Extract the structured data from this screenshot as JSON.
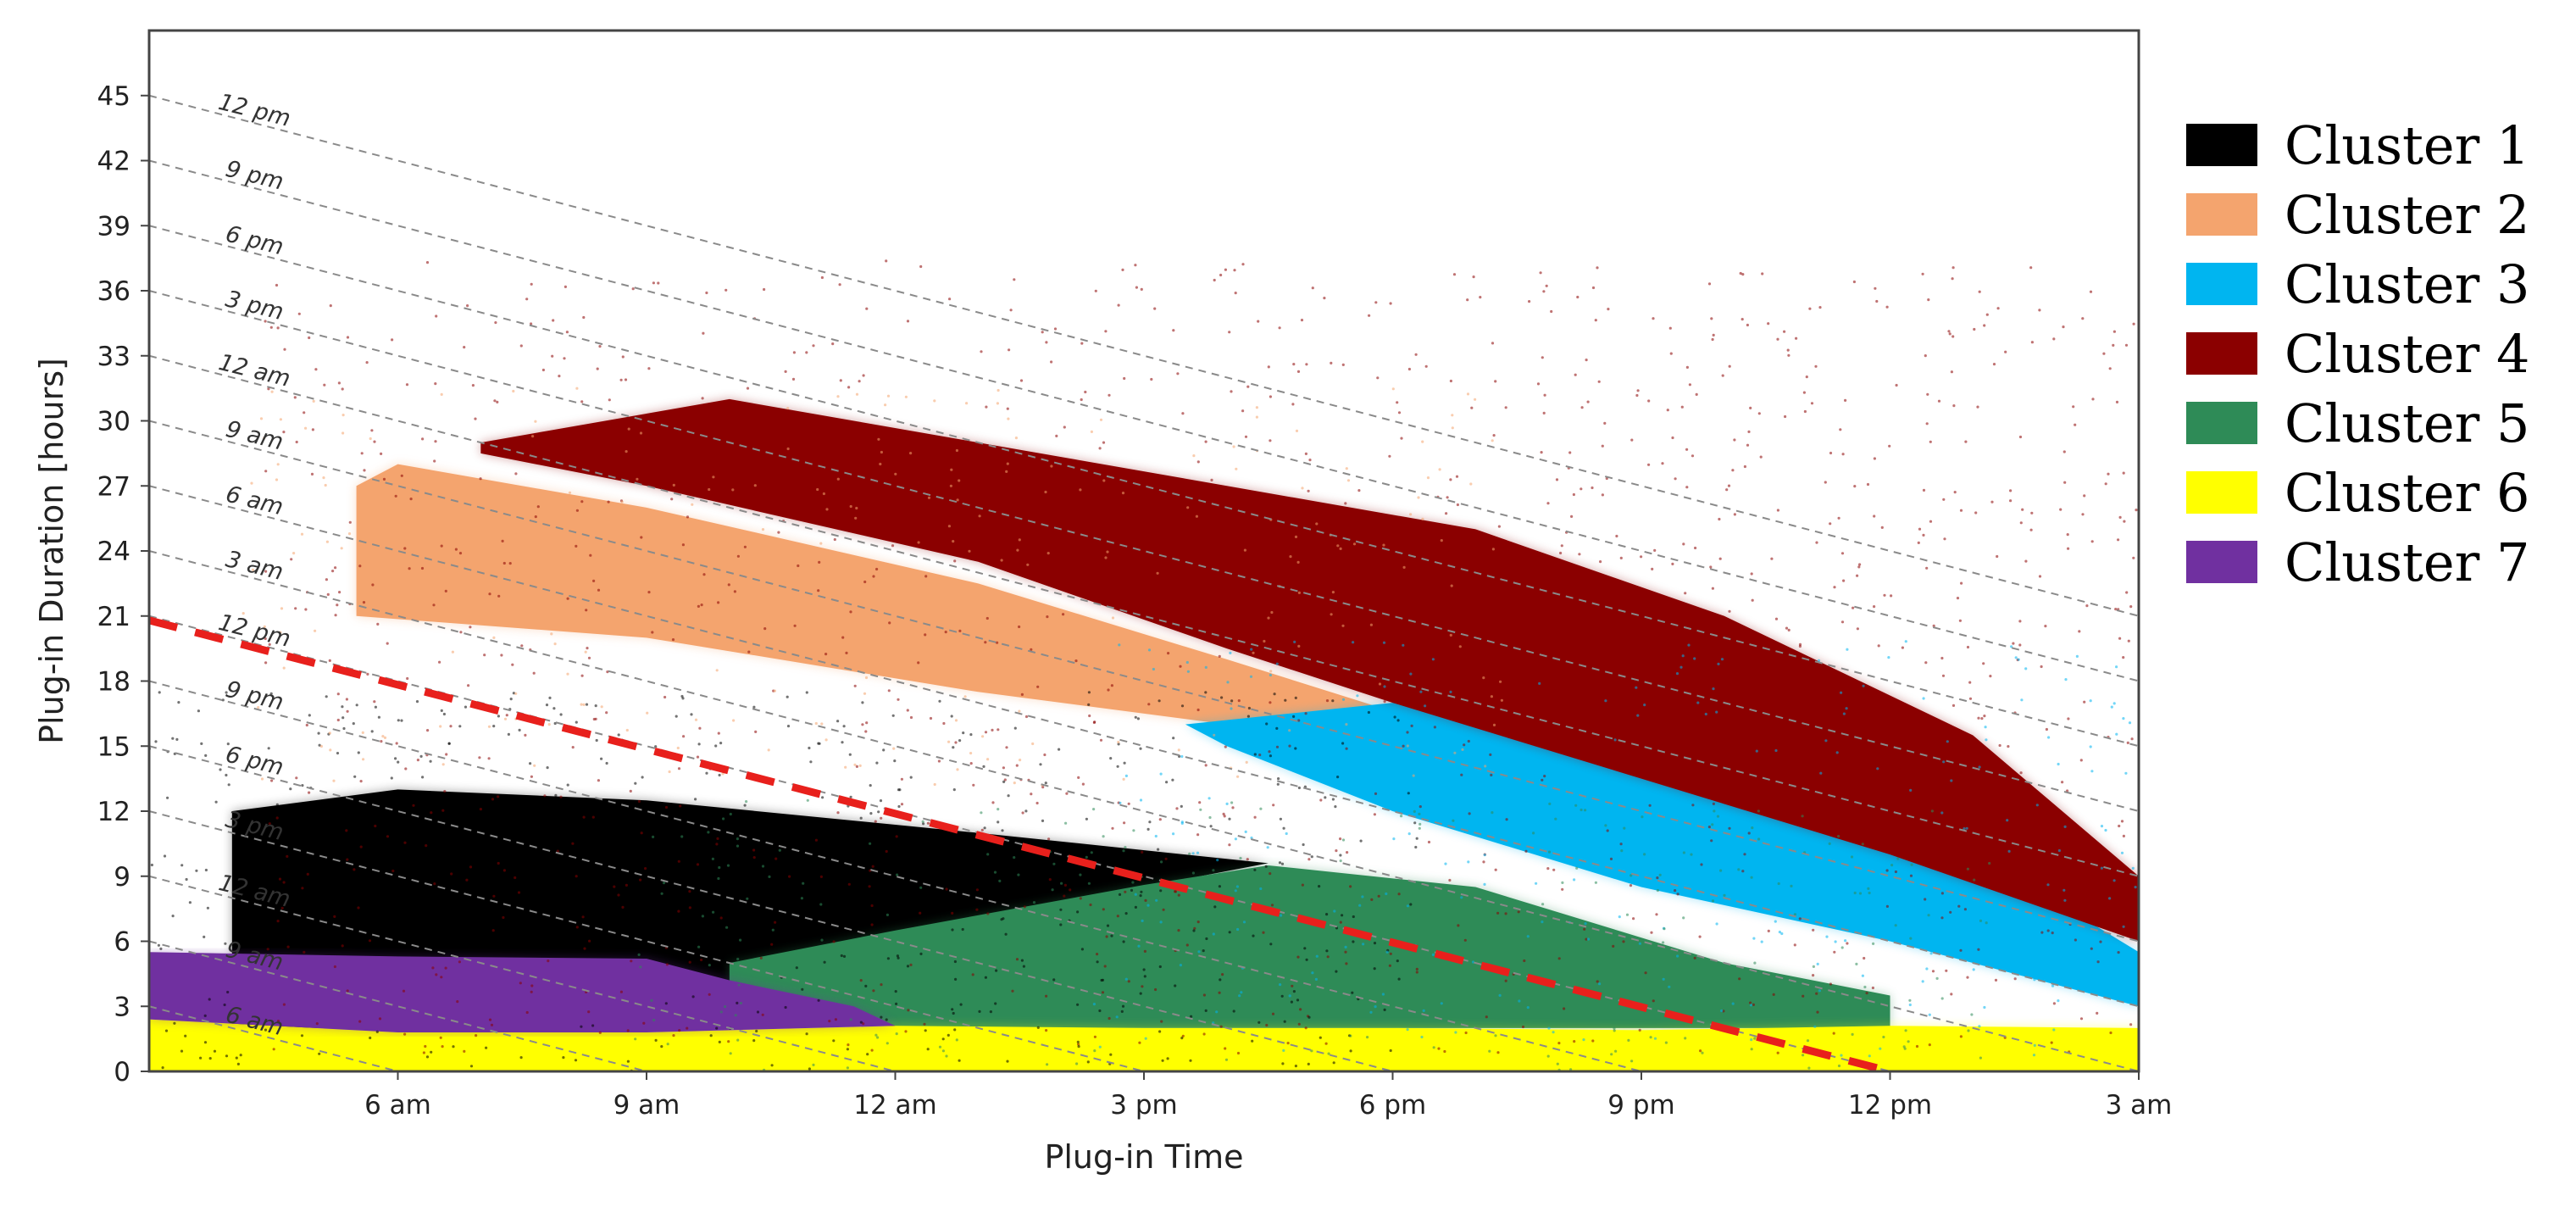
{
  "chart_data": {
    "type": "scatter",
    "title": "",
    "xlabel": "Plug-in Time",
    "ylabel": "Plug-in Duration [hours]",
    "x_unit": "hours after 3 am",
    "xlim": [
      0,
      24
    ],
    "ylim": [
      0,
      48
    ],
    "x_ticks": [
      {
        "value": 3,
        "label": "6 am"
      },
      {
        "value": 6,
        "label": "9 am"
      },
      {
        "value": 9,
        "label": "12 am"
      },
      {
        "value": 12,
        "label": "3 pm"
      },
      {
        "value": 15,
        "label": "6 pm"
      },
      {
        "value": 18,
        "label": "9 pm"
      },
      {
        "value": 21,
        "label": "12 pm"
      },
      {
        "value": 24,
        "label": "3 am"
      }
    ],
    "y_ticks": [
      0,
      3,
      6,
      9,
      12,
      15,
      18,
      21,
      24,
      27,
      30,
      33,
      36,
      39,
      42,
      45
    ],
    "unplug_time_lines": [
      {
        "intercept": 45,
        "label": "12 pm"
      },
      {
        "intercept": 42,
        "label": "9 pm"
      },
      {
        "intercept": 39,
        "label": "6 pm"
      },
      {
        "intercept": 36,
        "label": "3 pm"
      },
      {
        "intercept": 33,
        "label": "12 am"
      },
      {
        "intercept": 30,
        "label": "9 am"
      },
      {
        "intercept": 27,
        "label": "6 am"
      },
      {
        "intercept": 24,
        "label": "3 am"
      },
      {
        "intercept": 21,
        "label": "12 pm"
      },
      {
        "intercept": 18,
        "label": "9 pm"
      },
      {
        "intercept": 15,
        "label": "6 pm"
      },
      {
        "intercept": 12,
        "label": "3 pm"
      },
      {
        "intercept": 9,
        "label": "12 am"
      },
      {
        "intercept": 6,
        "label": "9 am"
      },
      {
        "intercept": 3,
        "label": "6 am"
      }
    ],
    "separator_line": {
      "x": [
        0,
        21
      ],
      "y": [
        20.8,
        0
      ],
      "color": "#e8201c",
      "style": "dashed"
    },
    "series": [
      {
        "name": "Cluster 1",
        "color": "#000000",
        "region": [
          [
            1,
            2
          ],
          [
            5,
            2
          ],
          [
            8,
            5.2
          ],
          [
            12,
            8.5
          ],
          [
            13.5,
            9.6
          ],
          [
            10,
            11
          ],
          [
            6,
            12.5
          ],
          [
            3,
            13
          ],
          [
            1,
            12
          ]
        ]
      },
      {
        "name": "Cluster 2",
        "color": "#f4a46e",
        "region": [
          [
            2.5,
            21
          ],
          [
            6,
            20
          ],
          [
            10,
            17.5
          ],
          [
            13,
            16
          ],
          [
            15,
            16.6
          ],
          [
            13,
            19
          ],
          [
            10,
            22.5
          ],
          [
            6,
            26
          ],
          [
            3,
            28
          ],
          [
            2.5,
            27
          ]
        ]
      },
      {
        "name": "Cluster 3",
        "color": "#00b5f0",
        "region": [
          [
            12.5,
            16
          ],
          [
            15,
            17
          ],
          [
            18,
            15
          ],
          [
            21,
            12.5
          ],
          [
            24,
            5.5
          ],
          [
            24,
            3
          ],
          [
            21,
            6
          ],
          [
            18,
            8.5
          ],
          [
            15,
            12
          ],
          [
            13,
            15
          ]
        ]
      },
      {
        "name": "Cluster 4",
        "color": "#8b0000",
        "region": [
          [
            4,
            29
          ],
          [
            7,
            31
          ],
          [
            10,
            29
          ],
          [
            13,
            27
          ],
          [
            16,
            25
          ],
          [
            19,
            21
          ],
          [
            22,
            15.5
          ],
          [
            24,
            9
          ],
          [
            24,
            6
          ],
          [
            21,
            10
          ],
          [
            18,
            13.5
          ],
          [
            15,
            17
          ],
          [
            13,
            19.5
          ],
          [
            10,
            23.5
          ],
          [
            6,
            27
          ],
          [
            4,
            28.5
          ]
        ]
      },
      {
        "name": "Cluster 5",
        "color": "#2e8b57",
        "region": [
          [
            7,
            5
          ],
          [
            9,
            6.5
          ],
          [
            12,
            8.6
          ],
          [
            13.5,
            9.5
          ],
          [
            16,
            8.5
          ],
          [
            19,
            5
          ],
          [
            21,
            3.5
          ],
          [
            21,
            2
          ],
          [
            18,
            2
          ],
          [
            15,
            2
          ],
          [
            12,
            2
          ],
          [
            9,
            2
          ],
          [
            8,
            3
          ],
          [
            7,
            4.2
          ]
        ]
      },
      {
        "name": "Cluster 6",
        "color": "#ffff00",
        "region": [
          [
            0,
            0
          ],
          [
            24,
            0
          ],
          [
            24,
            2
          ],
          [
            21,
            2.1
          ],
          [
            18,
            1.9
          ],
          [
            15,
            2
          ],
          [
            12,
            2
          ],
          [
            9,
            2.1
          ],
          [
            6,
            1.8
          ],
          [
            3,
            1.8
          ],
          [
            0,
            2.4
          ]
        ]
      },
      {
        "name": "Cluster 7",
        "color": "#7030a0",
        "region": [
          [
            0,
            2.4
          ],
          [
            3,
            1.8
          ],
          [
            6,
            1.8
          ],
          [
            9,
            2.1
          ],
          [
            8.5,
            3
          ],
          [
            7,
            4.2
          ],
          [
            6,
            5.2
          ],
          [
            3,
            5.3
          ],
          [
            0,
            5.5
          ]
        ]
      }
    ]
  }
}
